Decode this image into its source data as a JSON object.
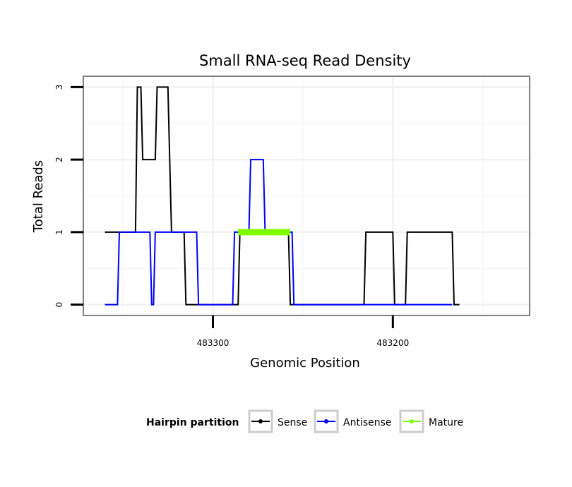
{
  "chart_data": {
    "type": "line",
    "title": "Small RNA-seq Read Density",
    "xlabel": "Genomic Position",
    "ylabel": "Total Reads",
    "x_reversed": true,
    "xlim": [
      483372,
      483124
    ],
    "ylim": [
      -0.15,
      3.15
    ],
    "x_ticks": [
      483300,
      483200
    ],
    "x_tick_labels": [
      "483300",
      "483200"
    ],
    "y_ticks": [
      0,
      1,
      2,
      3
    ],
    "y_tick_labels": [
      "0",
      "1",
      "2",
      "3"
    ],
    "grid": true,
    "legend_position": "bottom",
    "legend_title": "Hairpin partition",
    "series": [
      {
        "name": "Sense",
        "color": "#000000",
        "points": [
          [
            483360,
            1
          ],
          [
            483343,
            1
          ],
          [
            483342,
            3
          ],
          [
            483340,
            3
          ],
          [
            483339,
            2
          ],
          [
            483332,
            2
          ],
          [
            483331,
            3
          ],
          [
            483325,
            3
          ],
          [
            483324,
            2
          ],
          [
            483323,
            1
          ],
          [
            483316,
            1
          ],
          [
            483315,
            0
          ],
          [
            483286,
            0
          ],
          [
            483285,
            1
          ],
          [
            483258,
            1
          ],
          [
            483257,
            0
          ],
          [
            483216,
            0
          ],
          [
            483215,
            1
          ],
          [
            483200,
            1
          ],
          [
            483199,
            0
          ],
          [
            483193,
            0
          ],
          [
            483192,
            1
          ],
          [
            483167,
            1
          ],
          [
            483166,
            0
          ],
          [
            483163,
            0
          ]
        ]
      },
      {
        "name": "Antisense",
        "color": "#0000ff",
        "points": [
          [
            483360,
            0
          ],
          [
            483353,
            0
          ],
          [
            483352,
            1
          ],
          [
            483335,
            1
          ],
          [
            483334,
            0
          ],
          [
            483333,
            0
          ],
          [
            483332,
            1
          ],
          [
            483309,
            1
          ],
          [
            483308,
            0
          ],
          [
            483289,
            0
          ],
          [
            483288,
            1
          ],
          [
            483280,
            1
          ],
          [
            483279,
            2
          ],
          [
            483272,
            2
          ],
          [
            483271,
            1
          ],
          [
            483256,
            1
          ],
          [
            483255,
            0
          ],
          [
            483167,
            0
          ]
        ]
      },
      {
        "name": "Mature",
        "color": "#7fff00",
        "points": [
          [
            483286,
            1
          ],
          [
            483257,
            1
          ]
        ]
      }
    ]
  }
}
